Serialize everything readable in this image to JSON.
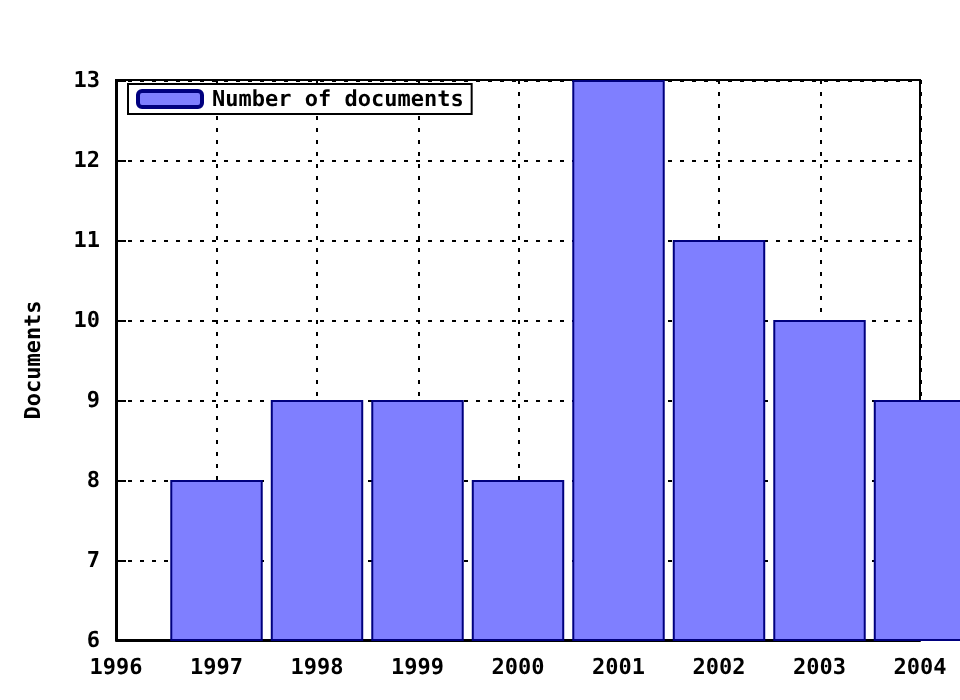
{
  "chart_data": {
    "type": "bar",
    "ylabel": "Documents",
    "x": [
      1997,
      1998,
      1999,
      2000,
      2001,
      2002,
      2003,
      2004
    ],
    "series": [
      {
        "name": "Number of documents",
        "color": "#7f7fff",
        "values": [
          8,
          9,
          9,
          8,
          13,
          11,
          10,
          9
        ]
      }
    ],
    "xlim": [
      1996,
      2004
    ],
    "xticks": [
      1996,
      1997,
      1998,
      1999,
      2000,
      2001,
      2002,
      2003,
      2004
    ],
    "ylim": [
      6,
      13
    ],
    "yticks": [
      6,
      7,
      8,
      9,
      10,
      11,
      12,
      13
    ],
    "grid": true,
    "legend": "top left"
  }
}
